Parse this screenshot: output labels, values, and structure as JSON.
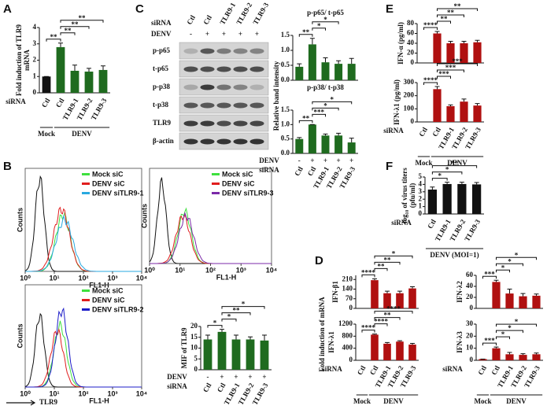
{
  "panel_labels": [
    "A",
    "B",
    "C",
    "D",
    "E",
    "F"
  ],
  "shared_labels": {
    "band_intensity": "Relative band intensity",
    "mrna": "Fold induction of mRNA"
  },
  "blot": {
    "row_label": "siRNA",
    "lanes": [
      "Ctl",
      "Ctl",
      "TLR9-1",
      "TLR9-2",
      "TLR9-3"
    ],
    "treatment_label": "DENV",
    "treatment": [
      "-",
      "+",
      "+",
      "+",
      "+"
    ],
    "bands": [
      "p-p65",
      "t-p65",
      "p-p38",
      "t-p38",
      "TLR9",
      "β-actin"
    ]
  },
  "flow": {
    "ylabel": "Counts",
    "xlabel": "FL1-H",
    "xscale": "log",
    "xlim": [
      1,
      10000
    ],
    "xticks": [
      {
        "value": 1,
        "label": "10⁰"
      },
      {
        "value": 10,
        "label": "10¹"
      },
      {
        "value": 100,
        "label": "10²"
      },
      {
        "value": 1000,
        "label": "10³"
      },
      {
        "value": 10000,
        "label": "10⁴"
      }
    ],
    "marker_label": "TLR9",
    "panels": [
      {
        "series": [
          {
            "name": "Mock siC",
            "color": "#3ee03e"
          },
          {
            "name": "DENV siC",
            "color": "#e01e1e"
          },
          {
            "name": "DENV siTLR9-1",
            "color": "#29a9e0"
          }
        ]
      },
      {
        "series": [
          {
            "name": "Mock siC",
            "color": "#3ee03e"
          },
          {
            "name": "DENV siC",
            "color": "#e01e1e"
          },
          {
            "name": "DENV siTLR9-3",
            "color": "#7b2aa8"
          }
        ]
      },
      {
        "series": [
          {
            "name": "Mock siC",
            "color": "#3ee03e"
          },
          {
            "name": "DENV siC",
            "color": "#e01e1e"
          },
          {
            "name": "DENV siTLR9-2",
            "color": "#1c1cc8"
          }
        ]
      }
    ]
  },
  "chart_data": [
    {
      "type": "bar",
      "ylabel": [
        "Fold induction of TLR9",
        "mRNA"
      ],
      "categories": [
        "Ctl",
        "Ctl",
        "TLR9-1",
        "TLR9-2",
        "TLR9-3"
      ],
      "values": [
        1,
        2.8,
        1.35,
        1.3,
        1.4
      ],
      "errors": [
        0,
        0.25,
        0.35,
        0.2,
        0.25
      ],
      "colors": [
        "#111111",
        "#1f6b1f",
        "#1f6b1f",
        "#1f6b1f",
        "#1f6b1f"
      ],
      "ylim": [
        0,
        4
      ],
      "yticks": [
        0,
        1,
        2,
        3,
        4
      ],
      "significance": [
        "**",
        "**",
        "**",
        "**"
      ],
      "row_label": "siRNA",
      "group_labels": [
        "Mock",
        "DENV"
      ]
    },
    {
      "type": "bar",
      "title": "p-p65/ t-p65",
      "values": [
        0.45,
        1.2,
        0.6,
        0.55,
        0.55
      ],
      "errors": [
        0.1,
        0.2,
        0.15,
        0.1,
        0.18
      ],
      "color": "#1f6b1f",
      "ylim": [
        0,
        1.5
      ],
      "yticks": [
        {
          "value": 0,
          "label": "0.0"
        },
        0.5,
        {
          "value": 1,
          "label": "1.0"
        },
        1.5
      ],
      "significance": [
        "**",
        "*",
        "*"
      ]
    },
    {
      "type": "bar",
      "title": "p-p38/ t-p38",
      "categories": [
        "Ctl",
        "Ctl",
        "TLR9-1",
        "TLR9-2",
        "TLR9-3"
      ],
      "values": [
        0.5,
        1.0,
        0.62,
        0.62,
        0.38
      ],
      "errors": [
        0.05,
        0,
        0.05,
        0.08,
        0.15
      ],
      "color": "#1f6b1f",
      "ylim": [
        0,
        1.5
      ],
      "yticks": [
        {
          "value": 0,
          "label": "0.0"
        },
        0.5,
        {
          "value": 1,
          "label": "1.0"
        },
        1.5
      ],
      "significance": [
        "**",
        "***",
        "*",
        "*"
      ],
      "treatment_label": "DENV",
      "treatment": [
        "-",
        "+",
        "+",
        "+",
        "+"
      ],
      "row_label": "siRNA"
    },
    {
      "type": "bar",
      "ylabel": "MIF of TLR9",
      "categories": [
        "Ctl",
        "Ctl",
        "TLR9-1",
        "TLR9-2",
        "TLR9-3"
      ],
      "values": [
        14,
        17.5,
        14,
        14,
        13.5
      ],
      "errors": [
        2,
        1.2,
        2,
        1.2,
        2.5
      ],
      "color": "#1f6b1f",
      "ylim": [
        0,
        20
      ],
      "yticks": [
        0,
        5,
        10,
        15,
        20
      ],
      "significance": [
        "*",
        "*",
        "**",
        "*"
      ],
      "treatment_label": "DENV",
      "treatment": [
        "-",
        "+",
        "+",
        "+",
        "+"
      ],
      "row_label": "siRNA"
    },
    {
      "type": "bar",
      "ylabel": "IFN-α (pg/ml)",
      "values": [
        0,
        60,
        40,
        40,
        42
      ],
      "errors": [
        0,
        4,
        4,
        4,
        4
      ],
      "color": "#b01010",
      "ylim": [
        0,
        80
      ],
      "yticks": [
        0,
        20,
        40,
        60,
        80
      ],
      "significance": [
        "****",
        "**",
        "**",
        "**"
      ]
    },
    {
      "type": "bar",
      "ylabel": "IFN-λ1 (pg/ml)",
      "categories": [
        "Ctl",
        "Ctl",
        "TLR9-1",
        "TLR9-2",
        "TLR9-3"
      ],
      "values": [
        0,
        250,
        120,
        155,
        125
      ],
      "errors": [
        0,
        20,
        10,
        20,
        15
      ],
      "color": "#b01010",
      "ylim": [
        0,
        300
      ],
      "yticks": [
        0,
        100,
        200,
        300
      ],
      "significance": [
        "****",
        "***",
        "***",
        "***"
      ],
      "row_label": "siRNA",
      "group_labels": [
        "Mock",
        "DENV"
      ]
    },
    {
      "type": "bar",
      "ylabel": [
        "log₁₀ of virus titers",
        "(pfu/ml)"
      ],
      "categories": [
        "Ctl",
        "TLR9-1",
        "TLR9-2",
        "TLR9-3"
      ],
      "values": [
        3.3,
        4.05,
        4.05,
        4.0
      ],
      "errors": [
        0.35,
        0.25,
        0.25,
        0.25
      ],
      "color": "#111111",
      "ylim": [
        0,
        5
      ],
      "yticks": [
        0,
        1,
        2,
        3,
        4,
        5
      ],
      "significance": [
        "*",
        "*",
        "**"
      ],
      "row_label": "siRNA",
      "group_labels": [
        "DENV (MOI=1)"
      ]
    },
    {
      "type": "bar",
      "ylabel": "IFN-β1",
      "values": [
        0,
        205,
        110,
        110,
        145
      ],
      "errors": [
        0,
        10,
        15,
        15,
        12
      ],
      "color": "#b01010",
      "ylim": [
        0,
        240
      ],
      "yticks": [
        0,
        70,
        140,
        210
      ],
      "significance": [
        "****",
        "**",
        "**",
        "*"
      ]
    },
    {
      "type": "bar",
      "ylabel": "IFN-λ2",
      "values": [
        0,
        48,
        27,
        22,
        23
      ],
      "errors": [
        0,
        3,
        8,
        5,
        3
      ],
      "color": "#b01010",
      "ylim": [
        0,
        60
      ],
      "yticks": [
        0,
        20,
        40,
        60
      ],
      "significance": [
        "***",
        "*",
        "*",
        "*"
      ]
    },
    {
      "type": "bar",
      "ylabel": "IFN-λ1",
      "categories": [
        "Ctl",
        "Ctl",
        "TLR9-1",
        "TLR9-2",
        "TLR9-3"
      ],
      "values": [
        0,
        850,
        550,
        620,
        520
      ],
      "errors": [
        0,
        20,
        40,
        30,
        40
      ],
      "color": "#b01010",
      "ylim": [
        0,
        1200
      ],
      "yticks": [
        0,
        400,
        800,
        1200
      ],
      "significance": [
        "****",
        "****",
        "**",
        "****"
      ],
      "row_label": "siRNA",
      "group_labels": [
        "Mock",
        "DENV"
      ]
    },
    {
      "type": "bar",
      "ylabel": "IFN-λ3",
      "categories": [
        "Ctl",
        "Ctl",
        "TLR9-1",
        "TLR9-2",
        "TLR9-3"
      ],
      "values": [
        1,
        10,
        5,
        4.5,
        5
      ],
      "errors": [
        0,
        1,
        1.5,
        1,
        1
      ],
      "color": "#b01010",
      "ylim": [
        0,
        30
      ],
      "yticks": [
        0,
        10,
        20,
        30
      ],
      "significance": [
        "***",
        "*",
        "*",
        "*"
      ],
      "row_label": "siRNA",
      "group_labels": [
        "Mock",
        "DENV"
      ]
    }
  ]
}
